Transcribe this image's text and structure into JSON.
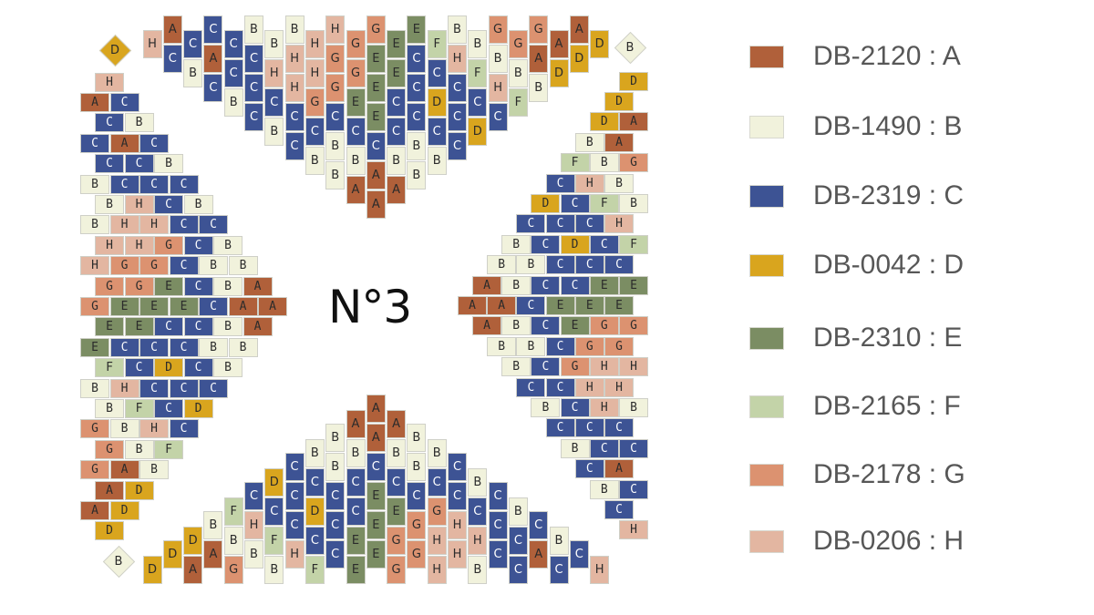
{
  "title": "N°3",
  "colors": {
    "A": "#b0603a",
    "B": "#f1f2dc",
    "C": "#3d5394",
    "D": "#d9a51e",
    "E": "#7b8d63",
    "F": "#c3d3a8",
    "G": "#dc9270",
    "H": "#e3b6a1"
  },
  "legend": [
    {
      "key": "A",
      "label": "DB-2120 : A"
    },
    {
      "key": "B",
      "label": "DB-1490 : B"
    },
    {
      "key": "C",
      "label": "DB-2319 : C"
    },
    {
      "key": "D",
      "label": "DB-0042 : D"
    },
    {
      "key": "E",
      "label": "DB-2310 : E"
    },
    {
      "key": "F",
      "label": "DB-2165 : F"
    },
    {
      "key": "G",
      "label": "DB-2178 : G"
    },
    {
      "key": "H",
      "label": "DB-0206 : H"
    }
  ],
  "pattern": {
    "left_and_top_sequence": [
      "H",
      "AC",
      "CB",
      "CAC",
      "CCB",
      "BCCC",
      "BHCB",
      "BHHCC",
      "HHGCB",
      "HGGCBB",
      "GGECBA",
      "GEEECAA",
      "EECCBA",
      "ECCCBB",
      "FCDCB",
      "BHCCC",
      "BFCD",
      "GBHC",
      "GBF",
      "GAB",
      "AD",
      "AD",
      "D"
    ],
    "right_and_bottom_sequence": [
      "D",
      "D",
      "AD",
      "AB",
      "GBF",
      "BHC",
      "BFCD",
      "HCCC",
      "FCDCB",
      "CCCBB",
      "EECCBA",
      "EEECAA",
      "GGECBA",
      "GGCBB",
      "HHGCB",
      "HHCC",
      "BHCB",
      "CCC",
      "CCB",
      "AC",
      "CB",
      "C",
      "H"
    ],
    "corner_diamonds": [
      {
        "corner": "top-left",
        "key": "D"
      },
      {
        "corner": "top-right",
        "key": "B"
      },
      {
        "corner": "bottom-left",
        "key": "B"
      }
    ]
  }
}
